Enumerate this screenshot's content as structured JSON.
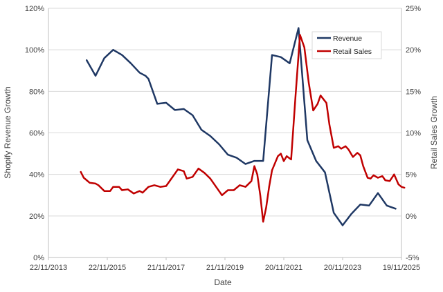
{
  "chart_data": {
    "type": "line",
    "title": "",
    "xlabel": "Date",
    "ylabel_left": "Shopify Revenue Growth",
    "ylabel_right": "Retail Sales Growth",
    "x_tick_labels": [
      "22/11/2013",
      "22/11/2015",
      "21/11/2017",
      "21/11/2019",
      "20/11/2021",
      "20/11/2023",
      "19/11/2025"
    ],
    "x_range": [
      2013.9,
      2025.9
    ],
    "y_left": {
      "range": [
        0,
        120
      ],
      "ticks": [
        0,
        20,
        40,
        60,
        80,
        100,
        120
      ],
      "tick_labels": [
        "0%",
        "20%",
        "40%",
        "60%",
        "80%",
        "100%",
        "120%"
      ]
    },
    "y_right": {
      "range": [
        -5,
        25
      ],
      "ticks": [
        -5,
        0,
        5,
        10,
        15,
        20,
        25
      ],
      "tick_labels": [
        "-5%",
        "0%",
        "5%",
        "10%",
        "15%",
        "20%",
        "25%"
      ]
    },
    "grid": "horizontal",
    "legend_position": "top-right",
    "series": [
      {
        "name": "Revenue",
        "axis": "left",
        "color": "#1f3864",
        "points": [
          [
            2015.2,
            95
          ],
          [
            2015.5,
            87.5
          ],
          [
            2015.8,
            96
          ],
          [
            2016.1,
            100
          ],
          [
            2016.4,
            97.5
          ],
          [
            2016.7,
            93.5
          ],
          [
            2017.0,
            89
          ],
          [
            2017.2,
            87.5
          ],
          [
            2017.3,
            86
          ],
          [
            2017.6,
            74
          ],
          [
            2017.9,
            74.5
          ],
          [
            2018.2,
            71
          ],
          [
            2018.5,
            71.5
          ],
          [
            2018.8,
            68.5
          ],
          [
            2019.1,
            61.5
          ],
          [
            2019.4,
            58.5
          ],
          [
            2019.7,
            54.5
          ],
          [
            2020.0,
            49.5
          ],
          [
            2020.3,
            48
          ],
          [
            2020.6,
            45
          ],
          [
            2020.9,
            46.5
          ],
          [
            2021.2,
            46.5
          ],
          [
            2021.5,
            97.5
          ],
          [
            2021.8,
            96.5
          ],
          [
            2022.1,
            93.5
          ],
          [
            2022.4,
            110.5
          ],
          [
            2022.7,
            56.5
          ],
          [
            2023.0,
            46.5
          ],
          [
            2023.3,
            41
          ],
          [
            2023.6,
            21.5
          ],
          [
            2023.9,
            15.5
          ],
          [
            2024.2,
            21
          ],
          [
            2024.5,
            25.5
          ],
          [
            2024.8,
            25
          ],
          [
            2025.1,
            31
          ],
          [
            2025.4,
            25
          ],
          [
            2025.7,
            23.5
          ]
        ]
      },
      {
        "name": "Retail Sales",
        "axis": "right",
        "color": "#c00000",
        "points": [
          [
            2015.0,
            5.3
          ],
          [
            2015.1,
            4.6
          ],
          [
            2015.3,
            4.0
          ],
          [
            2015.5,
            3.9
          ],
          [
            2015.6,
            3.7
          ],
          [
            2015.8,
            3.0
          ],
          [
            2016.0,
            3.0
          ],
          [
            2016.1,
            3.5
          ],
          [
            2016.3,
            3.5
          ],
          [
            2016.4,
            3.1
          ],
          [
            2016.6,
            3.2
          ],
          [
            2016.8,
            2.7
          ],
          [
            2017.0,
            3.0
          ],
          [
            2017.1,
            2.8
          ],
          [
            2017.3,
            3.5
          ],
          [
            2017.5,
            3.7
          ],
          [
            2017.7,
            3.5
          ],
          [
            2017.9,
            3.6
          ],
          [
            2018.1,
            4.6
          ],
          [
            2018.3,
            5.6
          ],
          [
            2018.5,
            5.4
          ],
          [
            2018.6,
            4.5
          ],
          [
            2018.8,
            4.7
          ],
          [
            2019.0,
            5.7
          ],
          [
            2019.2,
            5.2
          ],
          [
            2019.4,
            4.5
          ],
          [
            2019.6,
            3.5
          ],
          [
            2019.8,
            2.5
          ],
          [
            2020.0,
            3.1
          ],
          [
            2020.2,
            3.1
          ],
          [
            2020.4,
            3.7
          ],
          [
            2020.6,
            3.5
          ],
          [
            2020.8,
            4.2
          ],
          [
            2020.9,
            6.0
          ],
          [
            2021.0,
            5.0
          ],
          [
            2021.1,
            2.5
          ],
          [
            2021.2,
            -0.7
          ],
          [
            2021.3,
            1.0
          ],
          [
            2021.4,
            3.5
          ],
          [
            2021.5,
            5.5
          ],
          [
            2021.7,
            7.2
          ],
          [
            2021.8,
            7.5
          ],
          [
            2021.9,
            6.6
          ],
          [
            2022.0,
            7.2
          ],
          [
            2022.15,
            6.8
          ],
          [
            2022.3,
            14.5
          ],
          [
            2022.45,
            21.8
          ],
          [
            2022.6,
            20.3
          ],
          [
            2022.75,
            16.0
          ],
          [
            2022.9,
            12.7
          ],
          [
            2023.05,
            13.5
          ],
          [
            2023.15,
            14.5
          ],
          [
            2023.35,
            13.6
          ],
          [
            2023.45,
            11.0
          ],
          [
            2023.6,
            8.2
          ],
          [
            2023.75,
            8.4
          ],
          [
            2023.85,
            8.1
          ],
          [
            2024.0,
            8.4
          ],
          [
            2024.1,
            8.0
          ],
          [
            2024.25,
            7.1
          ],
          [
            2024.4,
            7.6
          ],
          [
            2024.5,
            7.3
          ],
          [
            2024.6,
            6.0
          ],
          [
            2024.75,
            4.6
          ],
          [
            2024.85,
            4.5
          ],
          [
            2024.95,
            4.9
          ],
          [
            2025.1,
            4.6
          ],
          [
            2025.25,
            4.8
          ],
          [
            2025.35,
            4.3
          ],
          [
            2025.5,
            4.2
          ],
          [
            2025.65,
            5.0
          ],
          [
            2025.8,
            3.8
          ],
          [
            2025.9,
            3.5
          ],
          [
            2026.0,
            3.4
          ]
        ]
      }
    ]
  }
}
